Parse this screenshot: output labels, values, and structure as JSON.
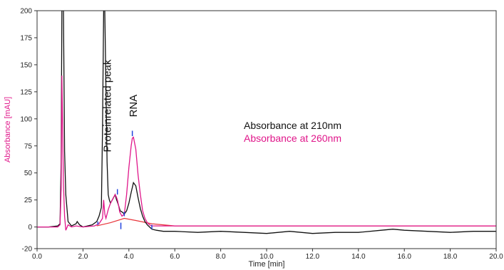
{
  "chart_data": {
    "type": "line",
    "xlabel": "Time [min]",
    "ylabel": "Absorbance [mAU]",
    "xlim": [
      0,
      20
    ],
    "ylim": [
      -20,
      200
    ],
    "xticks": [
      "0.0",
      "2.0",
      "4.0",
      "6.0",
      "8.0",
      "10.0",
      "12.0",
      "14.0",
      "16.0",
      "18.0",
      "20.0"
    ],
    "yticks": [
      "-20",
      "0",
      "25",
      "50",
      "75",
      "100",
      "125",
      "150",
      "175",
      "200"
    ],
    "grid": false,
    "legend_position": "center-right",
    "colors": {
      "series_210": "#111111",
      "series_260": "#e0168a",
      "baseline_260": "#e8343a",
      "marker": "#2244dd",
      "ylabel": "#e0168a"
    },
    "series": [
      {
        "name": "Absorbance at 210nm",
        "x": [
          0.0,
          0.5,
          0.9,
          1.0,
          1.05,
          1.08,
          1.15,
          1.2,
          1.25,
          1.35,
          1.5,
          1.7,
          1.75,
          1.85,
          2.0,
          2.4,
          2.6,
          2.7,
          2.8,
          2.85,
          2.9,
          2.95,
          3.05,
          3.1,
          3.15,
          3.2,
          3.3,
          3.4,
          3.45,
          3.55,
          3.62,
          3.7,
          3.8,
          3.9,
          4.0,
          4.1,
          4.2,
          4.3,
          4.4,
          4.5,
          4.6,
          4.7,
          4.8,
          4.9,
          5.0,
          5.2,
          5.5,
          6.0,
          7.0,
          8.0,
          9.0,
          10.0,
          11.0,
          12.0,
          13.0,
          14.0,
          15.0,
          15.5,
          16.0,
          17.0,
          18.0,
          19.0,
          20.0
        ],
        "y": [
          0,
          0,
          1,
          3,
          60,
          200,
          200,
          70,
          30,
          5,
          1,
          3,
          5,
          2,
          0,
          2,
          5,
          10,
          18,
          90,
          200,
          200,
          60,
          30,
          25,
          22,
          26,
          30,
          26,
          20,
          15,
          14,
          12,
          15,
          22,
          32,
          41,
          38,
          27,
          17,
          10,
          5,
          2,
          0,
          -2,
          -3,
          -4,
          -4,
          -5,
          -4,
          -5,
          -6,
          -4,
          -6,
          -5,
          -5,
          -3,
          -2,
          -3,
          -4,
          -5,
          -4,
          -4
        ]
      },
      {
        "name": "Absorbance at 260nm",
        "x": [
          0.0,
          0.5,
          0.9,
          1.0,
          1.05,
          1.08,
          1.12,
          1.15,
          1.2,
          1.25,
          1.35,
          1.5,
          1.7,
          2.0,
          2.5,
          2.7,
          2.85,
          2.9,
          2.95,
          3.0,
          3.1,
          3.2,
          3.3,
          3.4,
          3.45,
          3.5,
          3.55,
          3.6,
          3.7,
          3.8,
          3.9,
          4.0,
          4.1,
          4.15,
          4.2,
          4.3,
          4.4,
          4.5,
          4.6,
          4.7,
          4.8,
          4.9,
          5.0,
          5.2,
          5.5,
          6.0,
          8.0,
          10.0,
          12.0,
          14.0,
          16.0,
          18.0,
          20.0
        ],
        "y": [
          0,
          0,
          0,
          2,
          35,
          140,
          80,
          40,
          10,
          -3,
          2,
          0,
          1,
          0,
          1,
          3,
          8,
          25,
          12,
          8,
          16,
          22,
          26,
          30,
          28,
          25,
          20,
          14,
          10,
          12,
          30,
          55,
          75,
          82,
          83,
          72,
          48,
          30,
          15,
          8,
          4,
          2,
          1,
          1,
          1,
          1,
          1,
          1,
          1,
          1,
          1,
          1,
          1
        ]
      }
    ],
    "annotations": [
      {
        "text": "Proteinrelated peak",
        "x": 3.3,
        "y": 112
      },
      {
        "text": "RNA",
        "x": 4.2,
        "y": 112
      }
    ],
    "legend": [
      "Absorbance at 210nm",
      "Absorbance at 260nm"
    ]
  }
}
